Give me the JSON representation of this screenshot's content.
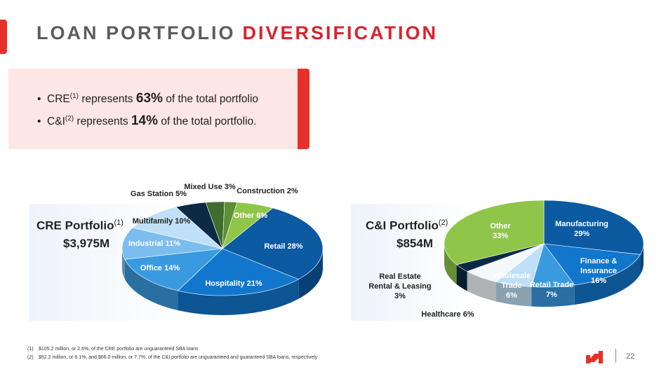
{
  "slide": {
    "title_part1": "LOAN PORTFOLIO",
    "title_part2": "DIVERSIFICATION",
    "page_number": "22",
    "colors": {
      "accent_red": "#e8302a",
      "callout_bg": "#fde6e6"
    }
  },
  "callout": {
    "bullet1": {
      "prefix": "CRE",
      "sup": "(1)",
      "text1": " represents ",
      "bold": "63%",
      "text2": " of the total portfolio"
    },
    "bullet2": {
      "prefix": "C&I",
      "sup": "(2)",
      "text1": " represents ",
      "bold": "14%",
      "text2": " of the total portfolio."
    }
  },
  "cre": {
    "title": "CRE Portfolio",
    "sup": "(1)",
    "total": "$3,975M"
  },
  "ci": {
    "title": "C&I Portfolio",
    "sup": "(2)",
    "total": "$854M"
  },
  "chart_data": [
    {
      "type": "pie",
      "title": "CRE Portfolio",
      "total": "$3,975M",
      "slices": [
        {
          "label": "Retail",
          "value": 28,
          "display": "28%",
          "color": "#0b5aa2"
        },
        {
          "label": "Hospitality",
          "value": 21,
          "display": "21%",
          "color": "#1276cc"
        },
        {
          "label": "Office",
          "value": 14,
          "display": "14%",
          "color": "#3a9ae0"
        },
        {
          "label": "Industrial",
          "value": 11,
          "display": "11%",
          "color": "#7cbdef"
        },
        {
          "label": "Multifamily",
          "value": 10,
          "display": "10%",
          "color": "#bfe0f7"
        },
        {
          "label": "Gas Station",
          "value": 5,
          "display": "5%",
          "color": "#0b2a44"
        },
        {
          "label": "Mixed Use",
          "value": 3,
          "display": "3%",
          "color": "#3f6e2c"
        },
        {
          "label": "Construction",
          "value": 2,
          "display": "2%",
          "color": "#5e8e35"
        },
        {
          "label": "Other",
          "value": 6,
          "display": "6%",
          "color": "#8fc64a"
        }
      ]
    },
    {
      "type": "pie",
      "title": "C&I Portfolio",
      "total": "$854M",
      "slices": [
        {
          "label": "Manufacturing",
          "value": 29,
          "display": "29%",
          "color": "#0b5aa2"
        },
        {
          "label": "Finance & Insurance",
          "value": 16,
          "display": "16%",
          "color": "#1276cc"
        },
        {
          "label": "Retail Trade",
          "value": 7,
          "display": "7%",
          "color": "#3a9ae0"
        },
        {
          "label": "Wholesale Trade",
          "value": 6,
          "display": "6%",
          "color": "#bfe0f7"
        },
        {
          "label": "Healthcare",
          "value": 6,
          "display": "6%",
          "color": "#f4f8fb"
        },
        {
          "label": "Real Estate Rental & Leasing",
          "value": 3,
          "display": "3%",
          "color": "#0b2a44"
        },
        {
          "label": "Other",
          "value": 33,
          "display": "33%",
          "color": "#8fc64a"
        }
      ]
    }
  ],
  "footnotes": [
    {
      "num": "(1)",
      "text": "$105.2 million, or 2.6%, of the CRE portfolio are unguaranteed SBA loans"
    },
    {
      "num": "(2)",
      "text": "$52.2 million, or 6.1%, and $66.0 million, or 7.7%, of the C&I portfolio are unguaranteed and guaranteed SBA loans, respectively"
    }
  ]
}
